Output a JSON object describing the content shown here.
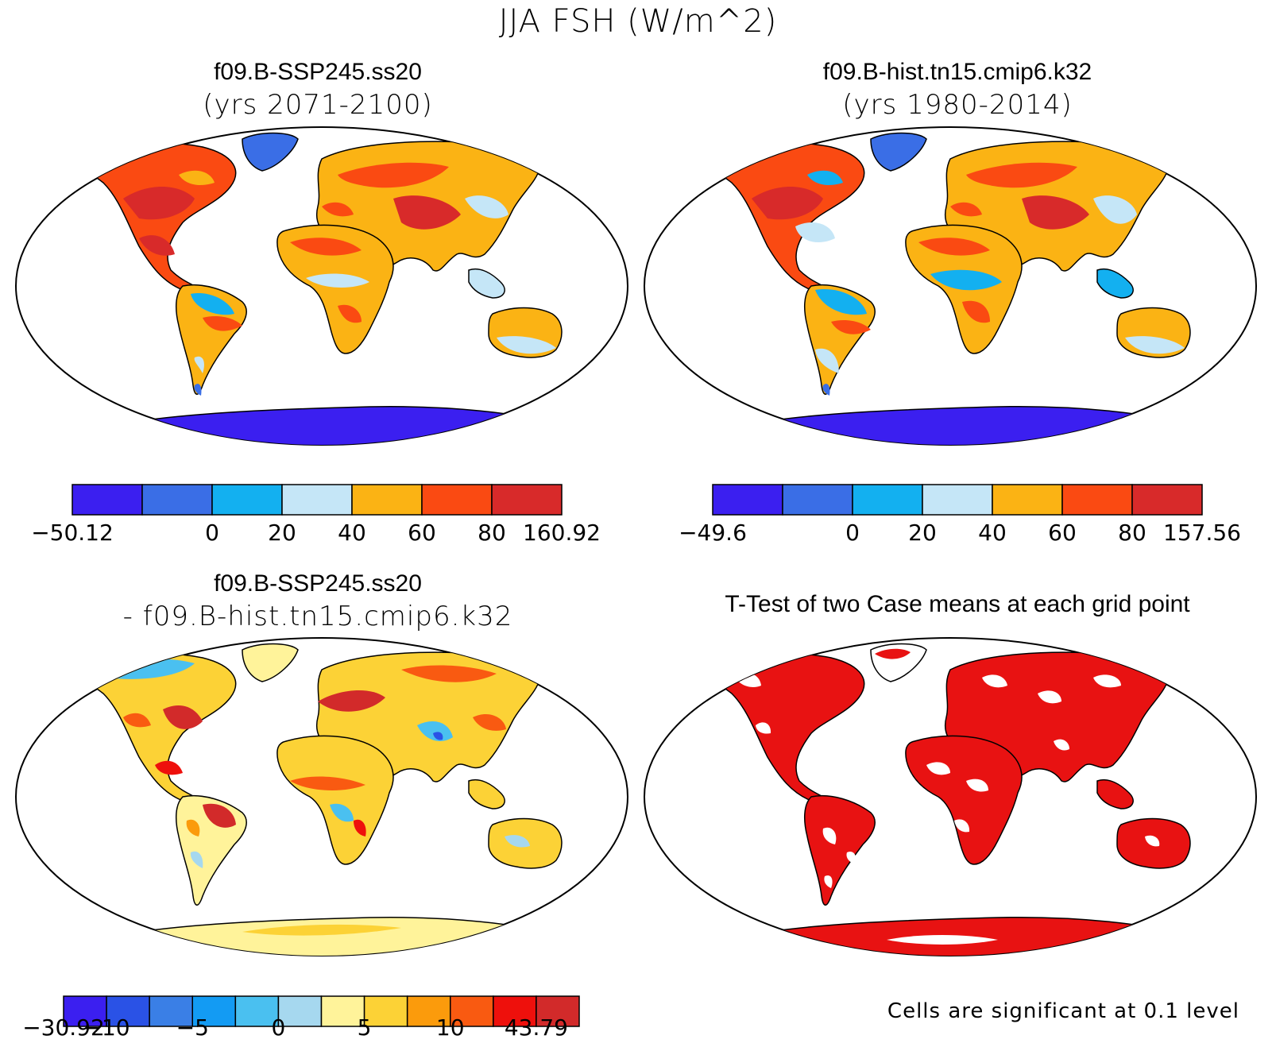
{
  "figure": {
    "title": "JJA FSH (W/m^2)"
  },
  "chart_data": [
    {
      "type": "heatmap",
      "title": "f09.B-SSP245.ss20",
      "subtitle": "(yrs 2071-2100)",
      "colorbar": {
        "colors": [
          "#3b1ff0",
          "#3a6ee6",
          "#13b0f0",
          "#c5e6f7",
          "#fbb314",
          "#fa4a12",
          "#d82a2a"
        ],
        "tick_labels": [
          "-50.12",
          "",
          "0",
          "20",
          "40",
          "60",
          "80",
          "160.92"
        ],
        "range": [
          -50.12,
          160.92
        ]
      }
    },
    {
      "type": "heatmap",
      "title": "f09.B-hist.tn15.cmip6.k32",
      "subtitle": "(yrs 1980-2014)",
      "colorbar": {
        "colors": [
          "#3b1ff0",
          "#3a6ee6",
          "#13b0f0",
          "#c5e6f7",
          "#fbb314",
          "#fa4a12",
          "#d82a2a"
        ],
        "tick_labels": [
          "-49.6",
          "",
          "0",
          "20",
          "40",
          "60",
          "80",
          "157.56"
        ],
        "range": [
          -49.6,
          157.56
        ]
      }
    },
    {
      "type": "heatmap",
      "title": "f09.B-SSP245.ss20",
      "subtitle": "- f09.B-hist.tn15.cmip6.k32",
      "colorbar": {
        "colors": [
          "#3b1ff0",
          "#2a52e6",
          "#3a7fe6",
          "#139bf3",
          "#4ac0f0",
          "#a6d8ef",
          "#fff39a",
          "#fcd236",
          "#fb9b0c",
          "#f95a11",
          "#ee100c",
          "#d22a2a"
        ],
        "tick_labels": [
          "-30.92",
          "-10",
          "",
          "-5",
          "",
          "0",
          "",
          "5",
          "",
          "10",
          "",
          "43.79"
        ],
        "range": [
          -30.92,
          43.79
        ]
      }
    },
    {
      "type": "heatmap",
      "title": "T-Test of two Case means at each grid point",
      "note": "Cells are significant at 0.1 level",
      "fill_color": "#e81212"
    }
  ]
}
